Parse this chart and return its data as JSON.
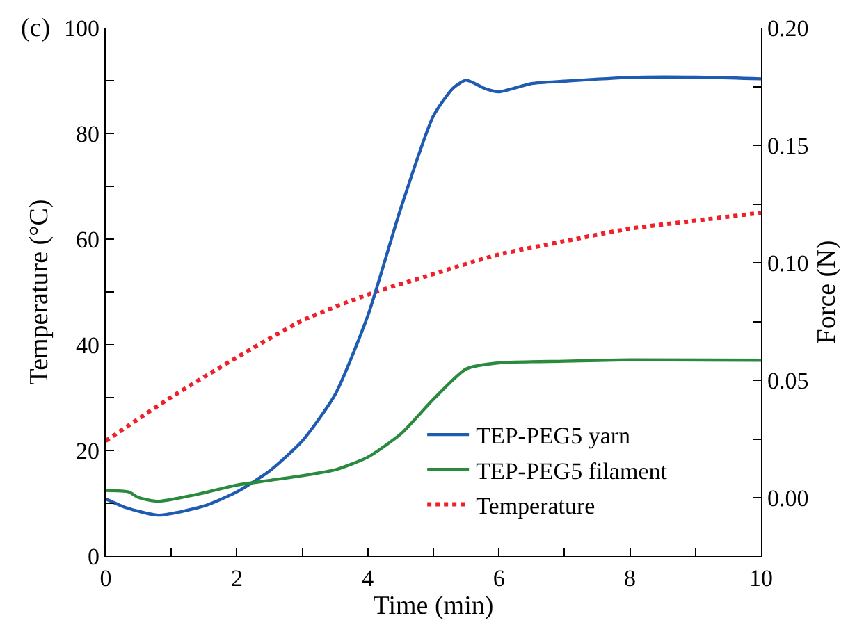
{
  "chart_data": {
    "type": "line",
    "xlabel": "Time (min)",
    "ylabel": "Temperature (°C)",
    "y2label": "Force (N)",
    "annotations": [
      "(c)"
    ],
    "xlim": [
      0,
      10
    ],
    "xticks": [
      0,
      {
        "value": 1,
        "label": null
      },
      2,
      {
        "value": 3,
        "label": null
      },
      4,
      {
        "value": 5,
        "label": null
      },
      6,
      {
        "value": 7,
        "label": null
      },
      8,
      {
        "value": 9,
        "label": null
      },
      10
    ],
    "ylim": [
      0,
      100
    ],
    "yticks": [
      0,
      {
        "value": 10,
        "label": null
      },
      20,
      {
        "value": 30,
        "label": null
      },
      40,
      {
        "value": 50,
        "label": null
      },
      60,
      {
        "value": 70,
        "label": null
      },
      80,
      {
        "value": 90,
        "label": null
      },
      100
    ],
    "y2lim": [
      -0.0247,
      0.2
    ],
    "y2ticks": [
      {
        "value": 0,
        "label": "0.00"
      },
      {
        "value": 0.025,
        "label": null
      },
      {
        "value": 0.05,
        "label": "0.05"
      },
      {
        "value": 0.075,
        "label": null
      },
      {
        "value": 0.1,
        "label": "0.10"
      },
      {
        "value": 0.125,
        "label": null
      },
      {
        "value": 0.15,
        "label": "0.15"
      },
      {
        "value": 0.175,
        "label": null
      },
      {
        "value": 0.2,
        "label": "0.20"
      }
    ],
    "grid": false,
    "legend": "bottom right",
    "marker": "none",
    "series": [
      {
        "name": "TEP-PEG5 yarn",
        "color": "#1f5bb0",
        "axis": "y2",
        "line_style": "solid",
        "x": [
          0,
          0.3,
          0.8,
          1.5,
          2,
          2.5,
          3,
          3.5,
          4,
          4.5,
          5,
          5.3,
          5.5,
          5.8,
          6,
          6.5,
          7,
          8,
          9,
          10
        ],
        "values": [
          -0.0004,
          -0.004,
          -0.0073,
          -0.0034,
          0.0026,
          0.0115,
          0.0243,
          0.044,
          0.0776,
          0.123,
          0.1625,
          0.1743,
          0.1777,
          0.174,
          0.1728,
          0.1763,
          0.1773,
          0.1789,
          0.179,
          0.1783
        ]
      },
      {
        "name": "TEP-PEG5 filament",
        "color": "#2a8a3e",
        "axis": "y2",
        "line_style": "solid",
        "x": [
          0,
          0.35,
          0.5,
          0.8,
          1.5,
          2,
          2.5,
          3,
          3.5,
          4,
          4.5,
          5,
          5.5,
          6,
          7,
          8,
          10
        ],
        "values": [
          0.0032,
          0.0026,
          0.0002,
          -0.0014,
          0.0022,
          0.0055,
          0.0075,
          0.0095,
          0.012,
          0.0174,
          0.0272,
          0.042,
          0.0549,
          0.0575,
          0.0582,
          0.0588,
          0.0586
        ]
      },
      {
        "name": "Temperature",
        "color": "#f0202a",
        "axis": "y",
        "line_style": "dotted",
        "x": [
          0,
          1,
          2,
          3,
          4,
          5,
          6,
          7,
          8,
          9,
          10
        ],
        "values": [
          21.8,
          30.1,
          37.6,
          44.6,
          49.5,
          53.4,
          57.1,
          59.6,
          62,
          63.5,
          65
        ]
      }
    ]
  }
}
